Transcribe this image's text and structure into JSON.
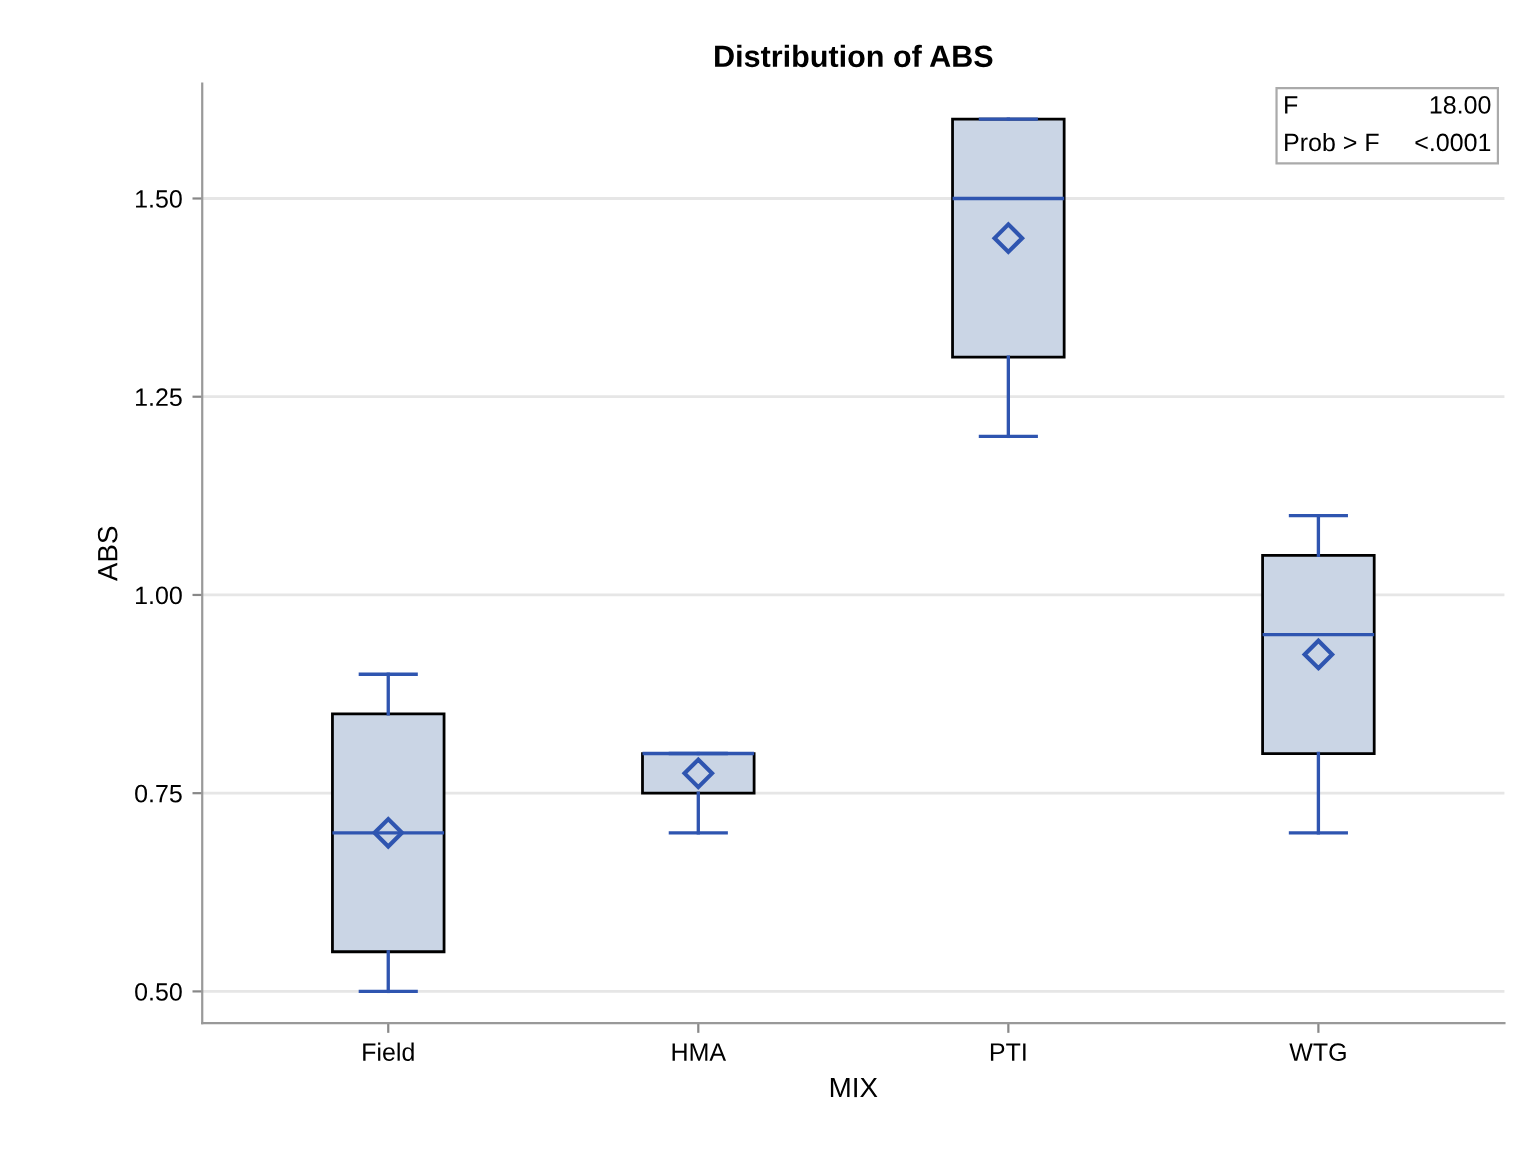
{
  "chart_data": {
    "type": "box",
    "title": "Distribution of ABS",
    "xlabel": "MIX",
    "ylabel": "ABS",
    "categories": [
      "Field",
      "HMA",
      "PTI",
      "WTG"
    ],
    "boxes": [
      {
        "low": 0.5,
        "q1": 0.55,
        "median": 0.7,
        "q3": 0.85,
        "high": 0.9,
        "mean": 0.7
      },
      {
        "low": 0.7,
        "q1": 0.75,
        "median": 0.8,
        "q3": 0.8,
        "high": 0.8,
        "mean": 0.775
      },
      {
        "low": 1.2,
        "q1": 1.3,
        "median": 1.5,
        "q3": 1.6,
        "high": 1.6,
        "mean": 1.45
      },
      {
        "low": 0.7,
        "q1": 0.8,
        "median": 0.95,
        "q3": 1.05,
        "high": 1.1,
        "mean": 0.925
      }
    ],
    "color": "#cad5e5",
    "marker": "diamond",
    "grid": "y",
    "ylim": [
      0.46,
      1.645
    ],
    "yticks": [
      {
        "value": 0.5,
        "label": "0.50"
      },
      {
        "value": 0.75,
        "label": "0.75"
      },
      {
        "value": 1.0,
        "label": "1.00"
      },
      {
        "value": 1.25,
        "label": "1.25"
      },
      {
        "value": 1.5,
        "label": "1.50"
      }
    ],
    "annotations": [
      "F",
      "18.00",
      "Prob > F",
      "<.0001"
    ]
  }
}
